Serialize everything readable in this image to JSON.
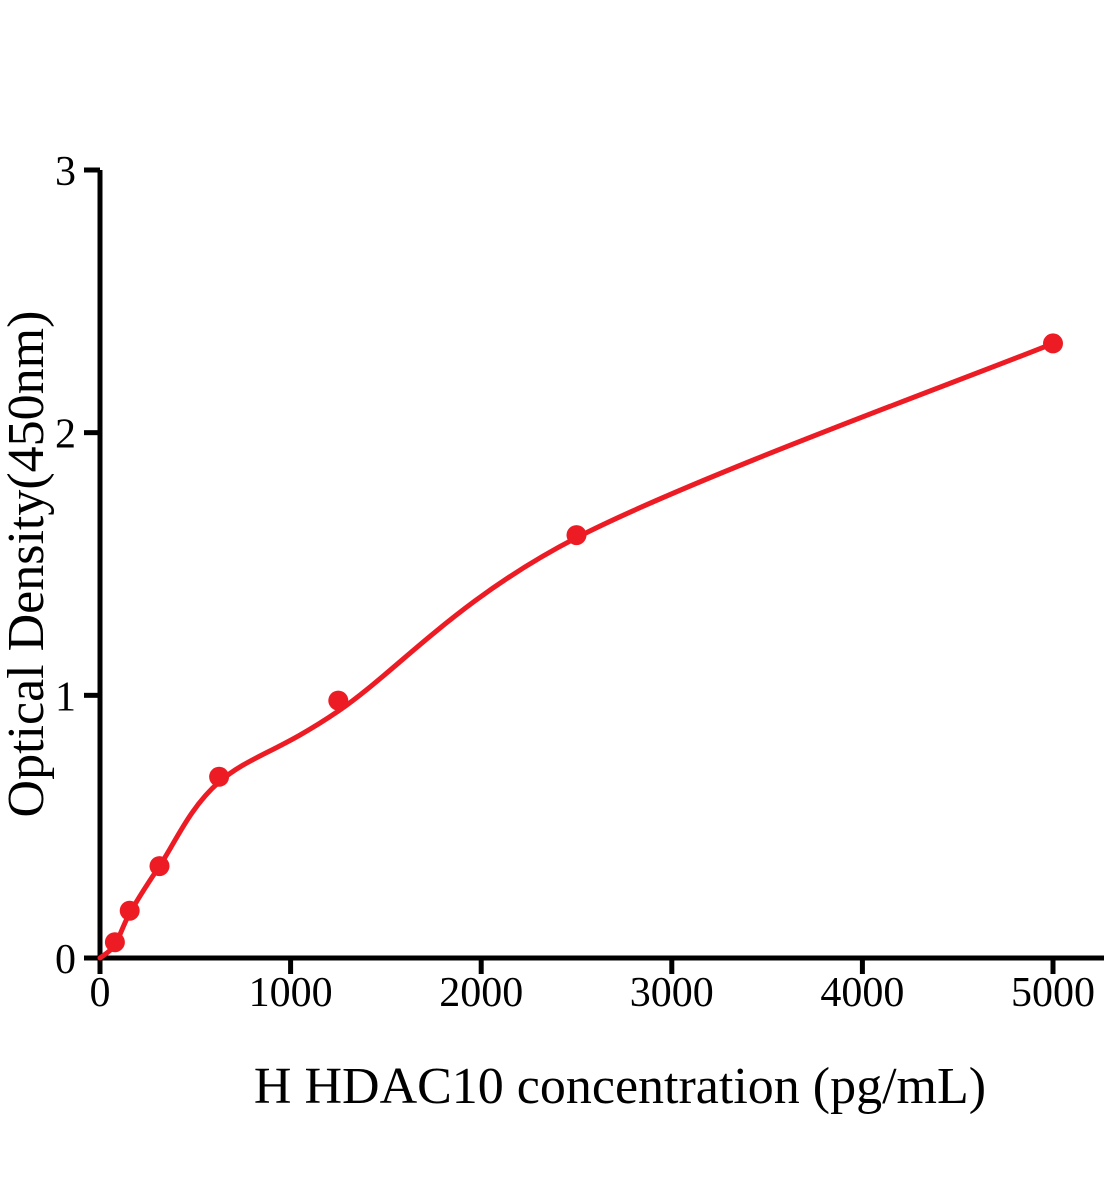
{
  "figure": {
    "background_color": "#FFFFFF",
    "axis_color": "#000000",
    "series_color": "#ED1C24"
  },
  "chart_data": {
    "type": "scatter",
    "title": "",
    "xlabel": "H HDAC10 concentration (pg/mL)",
    "ylabel": "Optical Density(450nm)",
    "xlim": [
      0,
      5000
    ],
    "ylim": [
      0,
      3
    ],
    "x_ticks": [
      0,
      1000,
      2000,
      3000,
      4000,
      5000
    ],
    "y_ticks": [
      0,
      1,
      2,
      3
    ],
    "grid": false,
    "legend_position": "none",
    "marker": "circle",
    "line_style": "4PL standard-curve fit",
    "series_color": "#ED1C24",
    "points": [
      {
        "x": 78,
        "y": 0.06
      },
      {
        "x": 156,
        "y": 0.18
      },
      {
        "x": 312,
        "y": 0.35
      },
      {
        "x": 625,
        "y": 0.69
      },
      {
        "x": 1250,
        "y": 0.98
      },
      {
        "x": 2500,
        "y": 1.61
      },
      {
        "x": 5000,
        "y": 2.34
      }
    ],
    "fit_curve": [
      {
        "x": 0,
        "y": 0.0
      },
      {
        "x": 78,
        "y": 0.05
      },
      {
        "x": 156,
        "y": 0.17
      },
      {
        "x": 312,
        "y": 0.35
      },
      {
        "x": 625,
        "y": 0.67
      },
      {
        "x": 1250,
        "y": 0.94
      },
      {
        "x": 2500,
        "y": 1.6
      },
      {
        "x": 5000,
        "y": 2.34
      }
    ]
  }
}
